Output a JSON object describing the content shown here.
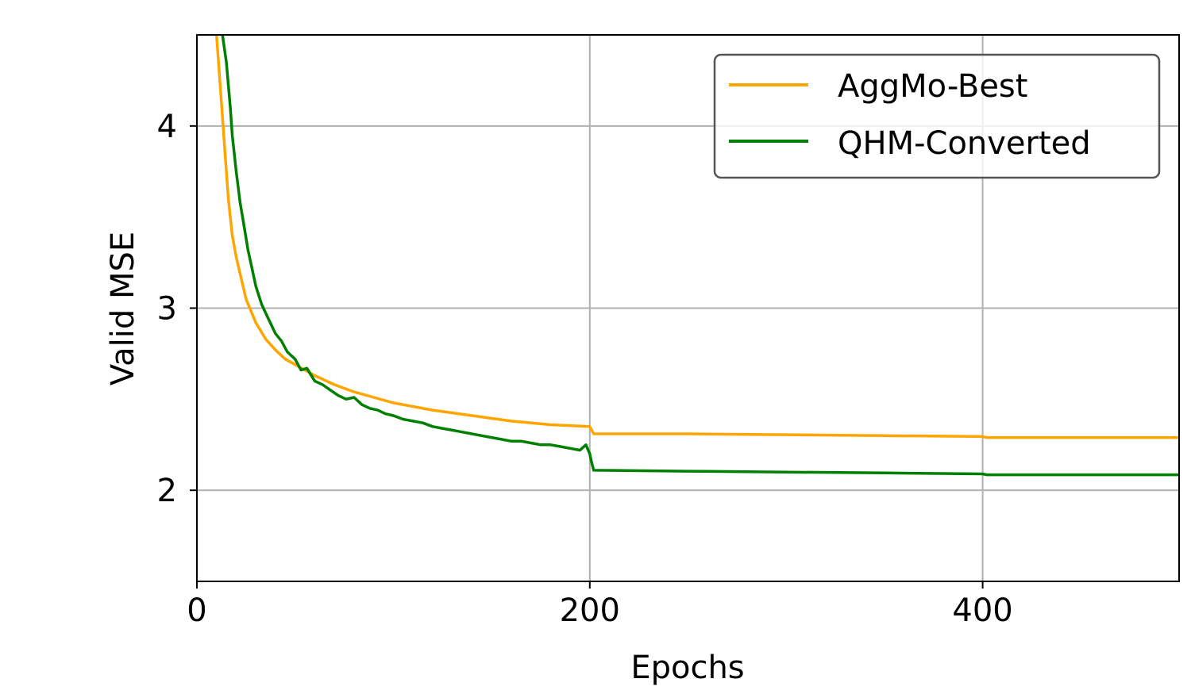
{
  "chart_data": {
    "type": "line",
    "xlabel": "Epochs",
    "ylabel": "Valid MSE",
    "xlim": [
      0,
      500
    ],
    "ylim": [
      1.5,
      4.5
    ],
    "xticks": [
      0,
      200,
      400
    ],
    "yticks": [
      2,
      3,
      4
    ],
    "grid": true,
    "legend_position": "top-right",
    "series": [
      {
        "name": "AggMo-Best",
        "color": "#ffa500",
        "x": [
          10,
          12,
          14,
          16,
          18,
          20,
          25,
          30,
          35,
          40,
          45,
          50,
          60,
          70,
          80,
          90,
          100,
          120,
          140,
          160,
          180,
          200,
          201,
          202,
          250,
          300,
          350,
          400,
          402,
          450,
          500
        ],
        "y": [
          4.5,
          4.2,
          3.9,
          3.6,
          3.4,
          3.28,
          3.05,
          2.92,
          2.83,
          2.77,
          2.72,
          2.69,
          2.63,
          2.58,
          2.54,
          2.51,
          2.48,
          2.44,
          2.41,
          2.38,
          2.36,
          2.35,
          2.33,
          2.31,
          2.31,
          2.305,
          2.3,
          2.295,
          2.29,
          2.29,
          2.29
        ]
      },
      {
        "name": "QHM-Converted",
        "color": "#008000",
        "x": [
          13,
          15,
          17,
          18,
          20,
          22,
          24,
          26,
          28,
          30,
          33,
          36,
          40,
          43,
          46,
          50,
          53,
          56,
          60,
          64,
          68,
          72,
          76,
          80,
          84,
          88,
          92,
          96,
          100,
          105,
          110,
          115,
          120,
          125,
          130,
          135,
          140,
          145,
          150,
          155,
          160,
          165,
          170,
          175,
          180,
          185,
          190,
          195,
          198,
          200,
          201,
          202,
          250,
          300,
          350,
          400,
          402,
          450,
          500
        ],
        "y": [
          4.5,
          4.35,
          4.1,
          3.95,
          3.75,
          3.58,
          3.45,
          3.32,
          3.22,
          3.12,
          3.02,
          2.95,
          2.86,
          2.82,
          2.76,
          2.72,
          2.66,
          2.67,
          2.6,
          2.58,
          2.55,
          2.52,
          2.5,
          2.51,
          2.47,
          2.45,
          2.44,
          2.42,
          2.41,
          2.39,
          2.38,
          2.37,
          2.35,
          2.34,
          2.33,
          2.32,
          2.31,
          2.3,
          2.29,
          2.28,
          2.27,
          2.27,
          2.26,
          2.25,
          2.25,
          2.24,
          2.23,
          2.22,
          2.25,
          2.2,
          2.15,
          2.11,
          2.105,
          2.1,
          2.095,
          2.09,
          2.085,
          2.085,
          2.085
        ]
      }
    ]
  }
}
